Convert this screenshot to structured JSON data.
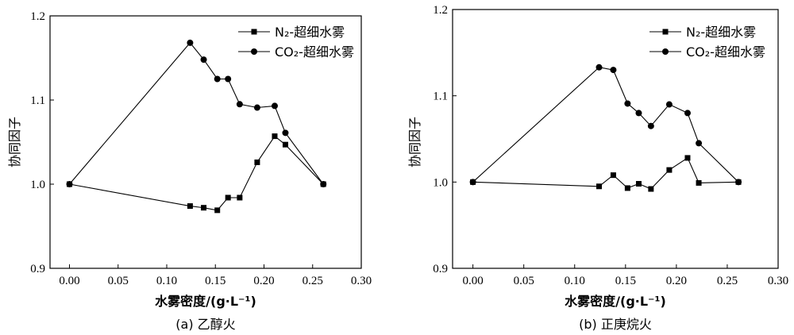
{
  "chart_data": [
    {
      "type": "line",
      "caption": "(a)  乙醇火",
      "xlabel": "水雾密度/(g·L⁻¹)",
      "ylabel": "协同因子",
      "xlim": [
        -0.02,
        0.3
      ],
      "ylim": [
        0.9,
        1.2
      ],
      "xticks": [
        "0.00",
        "0.05",
        "0.10",
        "0.15",
        "0.20",
        "0.25",
        "0.30"
      ],
      "yticks": [
        "0.9",
        "1.0",
        "1.1",
        "1.2"
      ],
      "legend_position": "top-right",
      "series": [
        {
          "name": "N₂-超细水雾",
          "marker": "square",
          "x": [
            0.0,
            0.124,
            0.138,
            0.152,
            0.163,
            0.175,
            0.193,
            0.211,
            0.222,
            0.261
          ],
          "y": [
            1.0,
            0.974,
            0.972,
            0.969,
            0.984,
            0.984,
            1.026,
            1.057,
            1.047,
            1.0
          ]
        },
        {
          "name": "CO₂-超细水雾",
          "marker": "circle",
          "x": [
            0.0,
            0.124,
            0.138,
            0.152,
            0.163,
            0.175,
            0.193,
            0.211,
            0.222,
            0.261
          ],
          "y": [
            1.0,
            1.168,
            1.148,
            1.125,
            1.125,
            1.095,
            1.091,
            1.093,
            1.061,
            1.0
          ]
        }
      ]
    },
    {
      "type": "line",
      "caption": "(b)  正庚烷火",
      "xlabel": "水雾密度/(g·L⁻¹)",
      "ylabel": "协同因子",
      "xlim": [
        -0.02,
        0.3
      ],
      "ylim": [
        0.9,
        1.2
      ],
      "xticks": [
        "0.00",
        "0.05",
        "0.10",
        "0.15",
        "0.20",
        "0.25",
        "0.30"
      ],
      "yticks": [
        "0.9",
        "1.0",
        "1.1",
        "1.2"
      ],
      "legend_position": "top-right",
      "series": [
        {
          "name": "N₂-超细水雾",
          "marker": "square",
          "x": [
            0.0,
            0.124,
            0.138,
            0.152,
            0.163,
            0.175,
            0.193,
            0.211,
            0.222,
            0.261
          ],
          "y": [
            1.0,
            0.995,
            1.008,
            0.993,
            0.998,
            0.992,
            1.014,
            1.028,
            0.999,
            1.0
          ]
        },
        {
          "name": "CO₂-超细水雾",
          "marker": "circle",
          "x": [
            0.0,
            0.124,
            0.138,
            0.152,
            0.163,
            0.175,
            0.193,
            0.211,
            0.222,
            0.261
          ],
          "y": [
            1.0,
            1.133,
            1.13,
            1.091,
            1.08,
            1.065,
            1.09,
            1.08,
            1.045,
            1.0
          ]
        }
      ]
    }
  ]
}
